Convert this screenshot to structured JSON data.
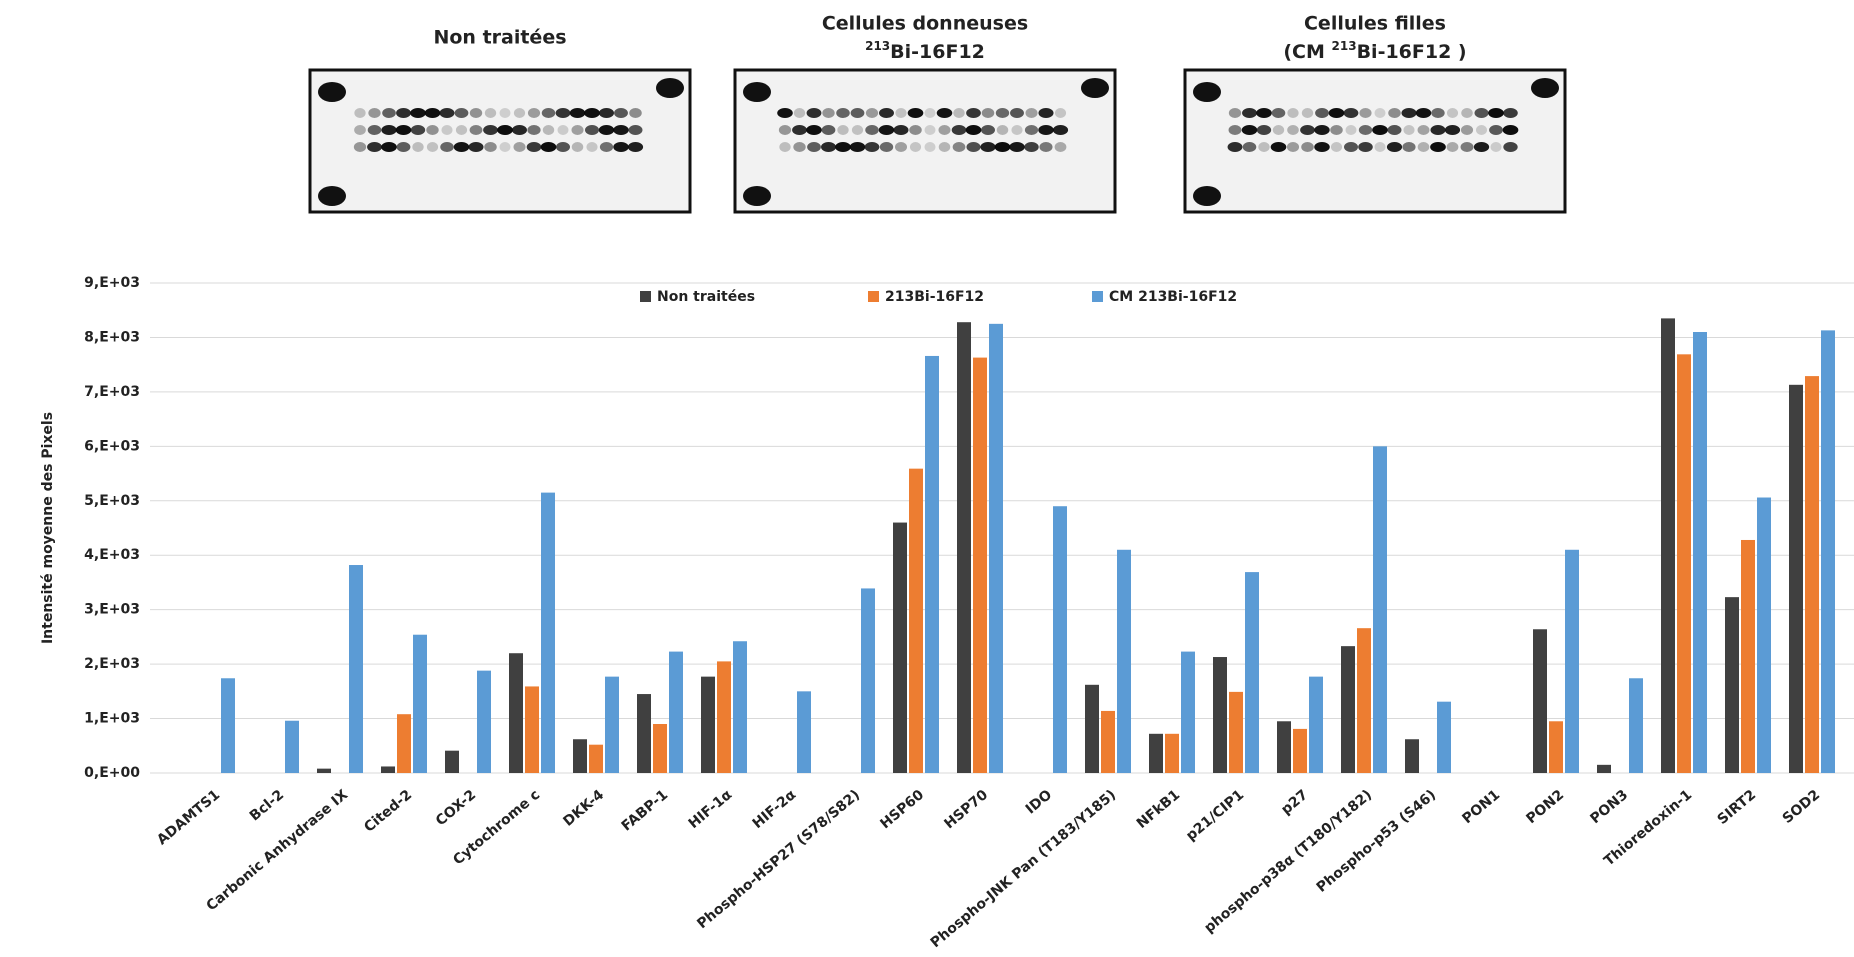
{
  "panels": [
    {
      "title": "Non traitées",
      "color": "#1a1a1a"
    },
    {
      "title": "Cellules donneuses",
      "sup": "213",
      "subtitle": "Bi-16F12",
      "color": "#ed7d31"
    },
    {
      "title": "Cellules filles",
      "prefix": "(CM ",
      "sup": "213",
      "subtitle": "Bi-16F12 )",
      "color": "#5b9bd5"
    }
  ],
  "chart_data": {
    "type": "bar",
    "y_label": "Intensité moyenne des Pixels",
    "categories": [
      "ADAMTS1",
      "Bcl-2",
      "Carbonic Anhydrase IX",
      "Cited-2",
      "COX-2",
      "Cytochrome c",
      "DKK-4",
      "FABP-1",
      "HIF-1α",
      "HIF-2α",
      "Phospho-HSP27 (S78/S82)",
      "HSP60",
      "HSP70",
      "IDO",
      "Phospho-JNK Pan (T183/Y185)",
      "NFkB1",
      "p21/CIP1",
      "p27",
      "phospho-p38α (T180/Y182)",
      "Phospho-p53 (S46)",
      "PON1",
      "PON2",
      "PON3",
      "Thioredoxin-1",
      "SIRT2",
      "SOD2"
    ],
    "series": [
      {
        "name": "Non traitées",
        "color": "#404040",
        "values": [
          0,
          0,
          80,
          120,
          410,
          2200,
          620,
          1450,
          1770,
          0,
          0,
          4600,
          8280,
          0,
          1620,
          720,
          2130,
          950,
          2330,
          620,
          0,
          2640,
          150,
          8350,
          3230,
          7130
        ]
      },
      {
        "name": "213Bi-16F12",
        "color": "#ed7d31",
        "values": [
          0,
          0,
          0,
          1080,
          0,
          1590,
          520,
          900,
          2050,
          0,
          0,
          5590,
          7630,
          0,
          1140,
          720,
          1490,
          810,
          2660,
          0,
          0,
          950,
          0,
          7690,
          4280,
          7290
        ]
      },
      {
        "name": "CM 213Bi-16F12",
        "color": "#5b9bd5",
        "values": [
          1740,
          960,
          3820,
          2540,
          1880,
          5150,
          1770,
          2230,
          2420,
          1500,
          3390,
          7660,
          8250,
          4900,
          4100,
          2230,
          3690,
          1770,
          6000,
          1310,
          0,
          4100,
          1740,
          8100,
          5060,
          8130
        ]
      }
    ],
    "ylim": [
      0,
      9000
    ],
    "yticks": [
      {
        "value": 0,
        "label": "0,E+00"
      },
      {
        "value": 1000,
        "label": "1,E+03"
      },
      {
        "value": 2000,
        "label": "2,E+03"
      },
      {
        "value": 3000,
        "label": "3,E+03"
      },
      {
        "value": 4000,
        "label": "4,E+03"
      },
      {
        "value": 5000,
        "label": "5,E+03"
      },
      {
        "value": 6000,
        "label": "6,E+03"
      },
      {
        "value": 7000,
        "label": "7,E+03"
      },
      {
        "value": 8000,
        "label": "8,E+03"
      },
      {
        "value": 9000,
        "label": "9,E+03"
      }
    ],
    "grid": true
  }
}
